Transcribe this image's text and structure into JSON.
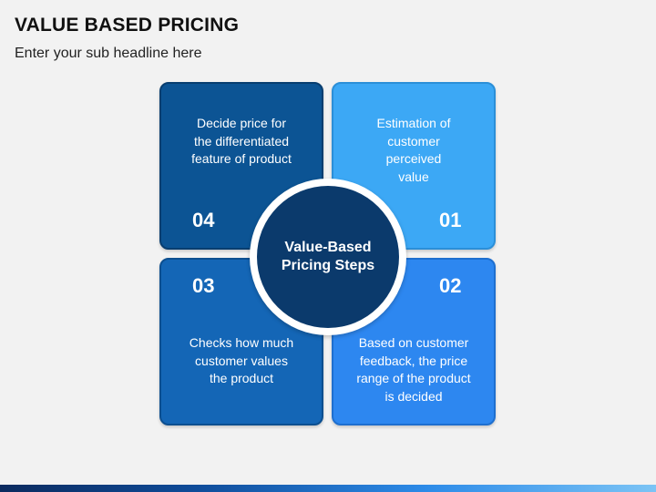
{
  "title": "VALUE BASED PRICING",
  "subtitle": "Enter your sub headline here",
  "hub": {
    "label": "Value-Based\nPricing Steps"
  },
  "steps": {
    "s01": {
      "number": "01",
      "text": "Estimation of\ncustomer\nperceived\nvalue",
      "color": "#3ca8f5"
    },
    "s02": {
      "number": "02",
      "text": "Based on customer\nfeedback, the price\nrange of the product\nis decided",
      "color": "#2d87f0"
    },
    "s03": {
      "number": "03",
      "text": "Checks how much\ncustomer values\nthe product",
      "color": "#1466b6"
    },
    "s04": {
      "number": "04",
      "text": "Decide price for\nthe differentiated\nfeature of product",
      "color": "#0c5494"
    }
  },
  "colors": {
    "hub": "#0b3a6c",
    "background": "#f2f2f2"
  }
}
